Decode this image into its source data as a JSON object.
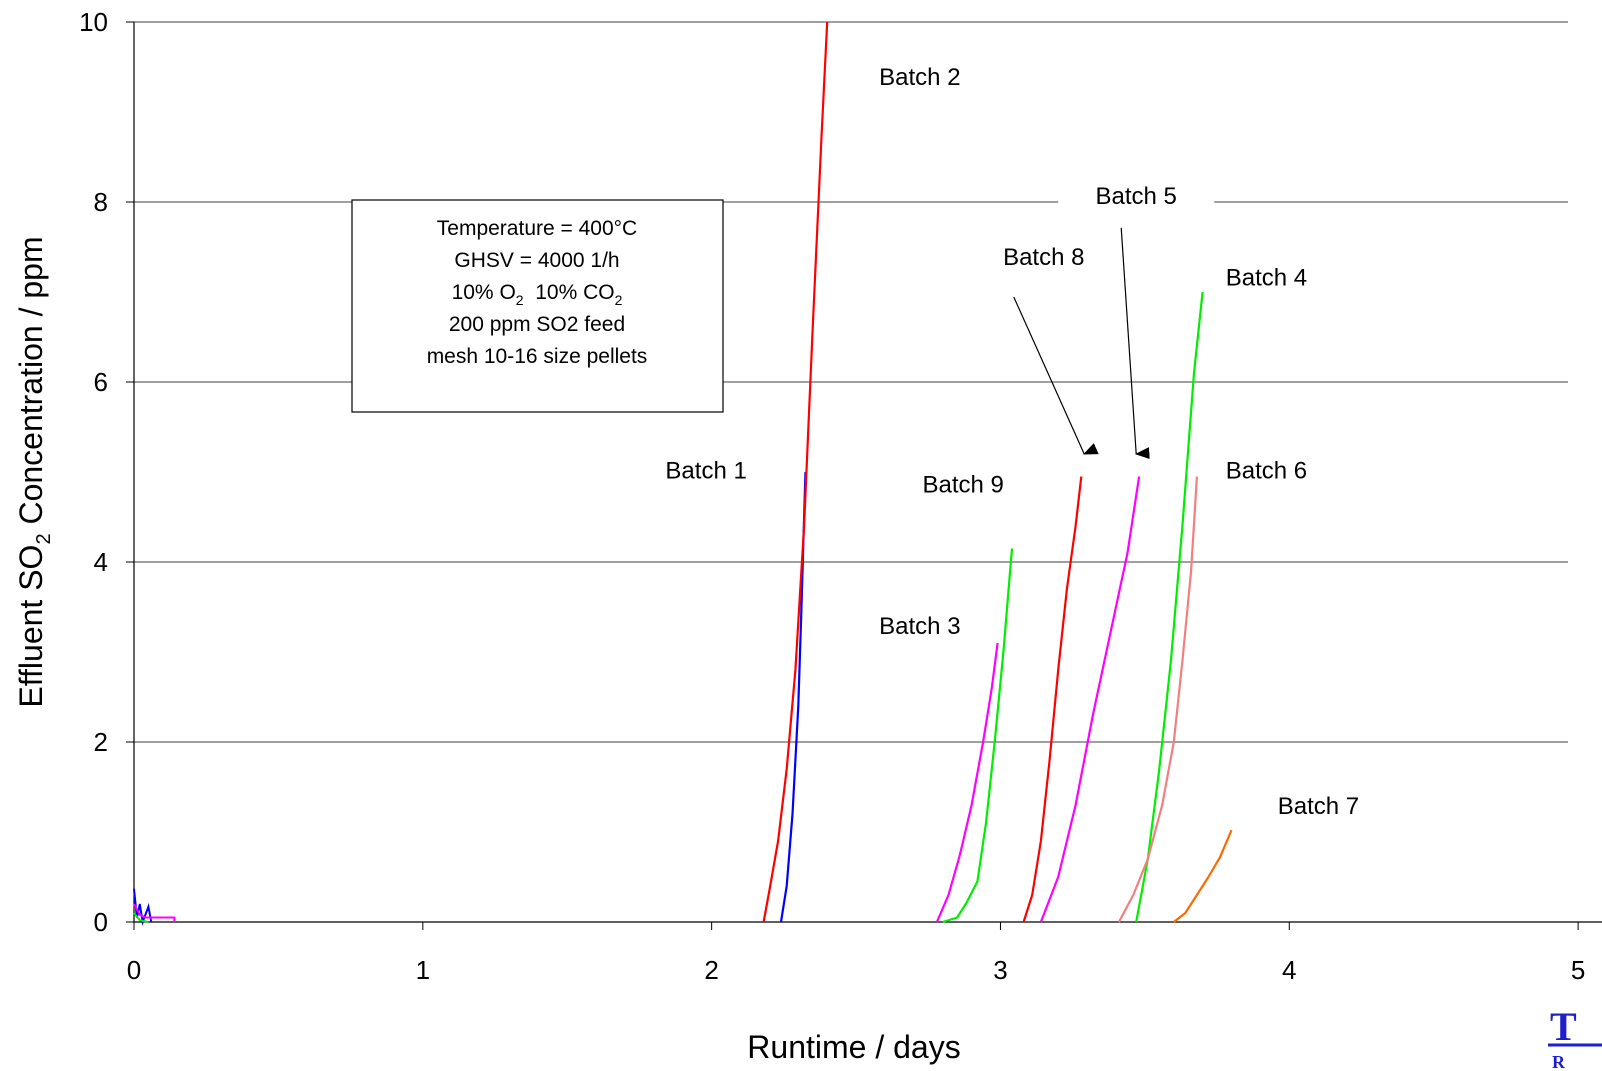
{
  "chart_data": {
    "type": "line",
    "xlabel": "Runtime / days",
    "ylabel_main": "Effluent SO",
    "ylabel_sub": "2",
    "ylabel_tail": " Concentration / ppm",
    "xlim": [
      0,
      5
    ],
    "ylim": [
      0,
      10
    ],
    "x_ticks": [
      "0",
      "1",
      "2",
      "3",
      "4",
      "5"
    ],
    "y_ticks": [
      "0",
      "2",
      "4",
      "6",
      "8",
      "10"
    ],
    "grid": "horizontal",
    "annotation": {
      "line1": "Temperature = 400°C",
      "line2": "GHSV = 4000 1/h",
      "line3_a": "10% O",
      "line3_a_sub": "2",
      "line3_b": "  10% CO",
      "line3_b_sub": "2",
      "line4": "200 ppm SO2 feed",
      "line5": "mesh 10-16 size pellets"
    },
    "series": [
      {
        "name": "Batch 1",
        "color": "#0000ff",
        "points": [
          [
            2.24,
            0
          ],
          [
            2.26,
            0.4
          ],
          [
            2.28,
            1.2
          ],
          [
            2.3,
            2.4
          ],
          [
            2.31,
            3.4
          ],
          [
            2.32,
            4.5
          ],
          [
            2.325,
            5.0
          ]
        ]
      },
      {
        "name": "Batch 2",
        "color": "#ff0000",
        "points": [
          [
            2.18,
            0
          ],
          [
            2.2,
            0.35
          ],
          [
            2.23,
            0.9
          ],
          [
            2.26,
            1.7
          ],
          [
            2.29,
            2.8
          ],
          [
            2.32,
            4.4
          ],
          [
            2.35,
            6.6
          ],
          [
            2.38,
            8.7
          ],
          [
            2.4,
            10.0
          ]
        ]
      },
      {
        "name": "Batch 3",
        "color": "#ff00ff",
        "points": [
          [
            2.78,
            0
          ],
          [
            2.82,
            0.3
          ],
          [
            2.86,
            0.75
          ],
          [
            2.9,
            1.3
          ],
          [
            2.94,
            2.0
          ],
          [
            2.97,
            2.6
          ],
          [
            2.99,
            3.1
          ]
        ]
      },
      {
        "name": "Batch 9",
        "color": "#00ee00",
        "points": [
          [
            2.8,
            0
          ],
          [
            2.85,
            0.05
          ],
          [
            2.88,
            0.2
          ],
          [
            2.92,
            0.45
          ],
          [
            2.95,
            1.1
          ],
          [
            2.98,
            2.0
          ],
          [
            3.01,
            3.0
          ],
          [
            3.04,
            4.15
          ]
        ]
      },
      {
        "name": "Batch 8",
        "color": "#ff0000",
        "points": [
          [
            3.08,
            0
          ],
          [
            3.11,
            0.3
          ],
          [
            3.14,
            0.9
          ],
          [
            3.17,
            1.8
          ],
          [
            3.2,
            2.8
          ],
          [
            3.23,
            3.7
          ],
          [
            3.26,
            4.4
          ],
          [
            3.28,
            4.95
          ]
        ]
      },
      {
        "name": "Batch 5",
        "color": "#ff00ff",
        "points": [
          [
            3.14,
            0
          ],
          [
            3.2,
            0.5
          ],
          [
            3.26,
            1.3
          ],
          [
            3.32,
            2.3
          ],
          [
            3.38,
            3.2
          ],
          [
            3.44,
            4.1
          ],
          [
            3.48,
            4.95
          ]
        ]
      },
      {
        "name": "Batch 4",
        "color": "#00ee00",
        "points": [
          [
            3.47,
            0
          ],
          [
            3.51,
            0.7
          ],
          [
            3.55,
            1.7
          ],
          [
            3.59,
            2.9
          ],
          [
            3.63,
            4.4
          ],
          [
            3.67,
            6.1
          ],
          [
            3.7,
            7.0
          ]
        ]
      },
      {
        "name": "Batch 6",
        "color": "#f08080",
        "points": [
          [
            3.41,
            0
          ],
          [
            3.46,
            0.3
          ],
          [
            3.51,
            0.7
          ],
          [
            3.56,
            1.3
          ],
          [
            3.6,
            2.0
          ],
          [
            3.63,
            2.9
          ],
          [
            3.66,
            3.9
          ],
          [
            3.68,
            4.95
          ]
        ]
      },
      {
        "name": "Batch 7",
        "color": "#ff6a00",
        "points": [
          [
            3.6,
            0
          ],
          [
            3.64,
            0.1
          ],
          [
            3.68,
            0.3
          ],
          [
            3.72,
            0.5
          ],
          [
            3.76,
            0.72
          ],
          [
            3.8,
            1.02
          ]
        ]
      }
    ],
    "startup_traces": [
      {
        "color": "#0000ff",
        "points": [
          [
            0.0,
            0.37
          ],
          [
            0.01,
            0.05
          ],
          [
            0.02,
            0.2
          ],
          [
            0.03,
            0.0
          ],
          [
            0.05,
            0.17
          ],
          [
            0.06,
            0.0
          ]
        ]
      },
      {
        "color": "#ff00ff",
        "points": [
          [
            0.0,
            0.2
          ],
          [
            0.02,
            0.08
          ],
          [
            0.04,
            0.05
          ],
          [
            0.14,
            0.05
          ],
          [
            0.14,
            0.0
          ]
        ]
      },
      {
        "color": "#00ee00",
        "points": [
          [
            0.0,
            0.1
          ],
          [
            0.02,
            0.02
          ],
          [
            0.05,
            0.0
          ]
        ]
      }
    ],
    "labels": [
      {
        "text": "Batch 2",
        "x": 2.58,
        "y": 9.3,
        "arrow": false
      },
      {
        "text": "Batch 5",
        "x": 3.47,
        "y": 7.98,
        "arrow": true,
        "to": [
          3.47,
          5.2
        ]
      },
      {
        "text": "Batch 8",
        "x": 3.15,
        "y": 7.3,
        "arrow": true,
        "to": [
          3.29,
          5.2
        ]
      },
      {
        "text": "Batch 4",
        "x": 3.78,
        "y": 7.07,
        "arrow": false
      },
      {
        "text": "Batch 1",
        "x": 1.84,
        "y": 4.93,
        "arrow": false
      },
      {
        "text": "Batch 9",
        "x": 2.73,
        "y": 4.77,
        "arrow": false
      },
      {
        "text": "Batch 6",
        "x": 3.78,
        "y": 4.93,
        "arrow": false
      },
      {
        "text": "Batch 3",
        "x": 2.58,
        "y": 3.2,
        "arrow": false
      },
      {
        "text": "Batch 7",
        "x": 3.96,
        "y": 1.2,
        "arrow": false
      }
    ]
  },
  "logo": {
    "letter": "T",
    "sub": "R"
  }
}
